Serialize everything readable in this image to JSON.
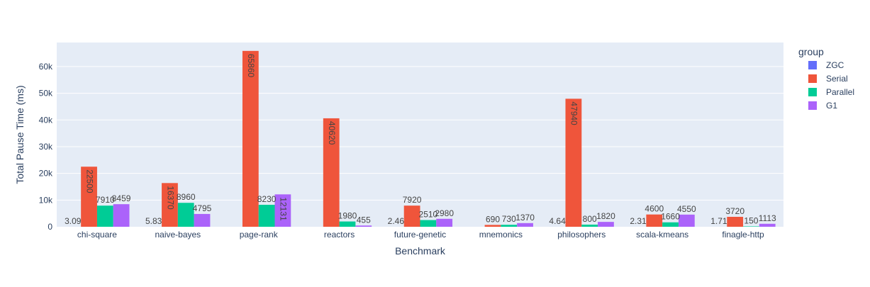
{
  "chart_data": {
    "type": "bar",
    "barmode": "group",
    "xlabel": "Benchmark",
    "ylabel": "Total Pause Time (ms)",
    "ylim": [
      0,
      69000
    ],
    "yticks": [
      0,
      10000,
      20000,
      30000,
      40000,
      50000,
      60000
    ],
    "ytick_labels": [
      "0",
      "10k",
      "20k",
      "30k",
      "40k",
      "50k",
      "60k"
    ],
    "grid": true,
    "legend": {
      "title": "group",
      "placement": "right"
    },
    "categories": [
      "chi-square",
      "naive-bayes",
      "page-rank",
      "reactors",
      "future-genetic",
      "mnemonics",
      "philosophers",
      "scala-kmeans",
      "finagle-http"
    ],
    "series": [
      {
        "name": "ZGC",
        "color": "#636efa",
        "values": [
          3.09,
          5.83,
          null,
          null,
          2.46,
          null,
          4.64,
          2.31,
          1.71
        ],
        "labels": [
          "3.09",
          "5.83",
          "",
          "",
          "2.46",
          "",
          "4.64",
          "2.31",
          "1.71"
        ]
      },
      {
        "name": "Serial",
        "color": "#ef553b",
        "values": [
          22500,
          16370,
          65860,
          40620,
          7920,
          690,
          47940,
          4600,
          3720
        ],
        "labels": [
          "22500",
          "16370",
          "65860",
          "40620",
          "7920",
          "690",
          "47940",
          "4600",
          "3720"
        ]
      },
      {
        "name": "Parallel",
        "color": "#00cc96",
        "values": [
          7910,
          8960,
          8230,
          1980,
          2510,
          730,
          800,
          1660,
          150
        ],
        "labels": [
          "7910",
          "8960",
          "8230",
          "1980",
          "2510",
          "730",
          "800",
          "1660",
          "150"
        ]
      },
      {
        "name": "G1",
        "color": "#ab63fa",
        "values": [
          8459,
          4795,
          12131,
          455,
          2980,
          1370,
          1820,
          4550,
          1113
        ],
        "labels": [
          "8459",
          "4795",
          "12131",
          "455",
          "2980",
          "1370",
          "1820",
          "4550",
          "1113"
        ]
      }
    ]
  }
}
